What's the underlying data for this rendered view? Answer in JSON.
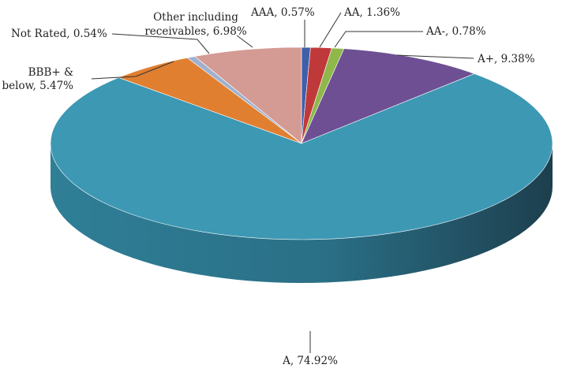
{
  "chart_data": {
    "type": "pie",
    "three_d": true,
    "title": "",
    "legend": "none",
    "slices": [
      {
        "label": "AAA",
        "value": 0.57,
        "text": "AAA, 0.57%",
        "color": "#3f5fa8"
      },
      {
        "label": "AA",
        "value": 1.36,
        "text": "AA, 1.36%",
        "color": "#c0393a"
      },
      {
        "label": "AA-",
        "value": 0.78,
        "text": "AA-, 0.78%",
        "color": "#8fb84a"
      },
      {
        "label": "A+",
        "value": 9.38,
        "text": "A+, 9.38%",
        "color": "#6e4f93"
      },
      {
        "label": "A",
        "value": 74.92,
        "text": "A, 74.92%",
        "color": "#3d98b4"
      },
      {
        "label": "BBB+ & below",
        "value": 5.47,
        "text_lines": [
          "BBB+ &",
          "below, 5.47%"
        ],
        "color": "#e17f30"
      },
      {
        "label": "Not Rated",
        "value": 0.54,
        "text": "Not Rated, 0.54%",
        "color": "#9fb1cf"
      },
      {
        "label": "Other including receivables",
        "value": 6.98,
        "text_lines": [
          "Other including",
          "receivables, 6.98%"
        ],
        "color": "#d49a94"
      }
    ]
  }
}
